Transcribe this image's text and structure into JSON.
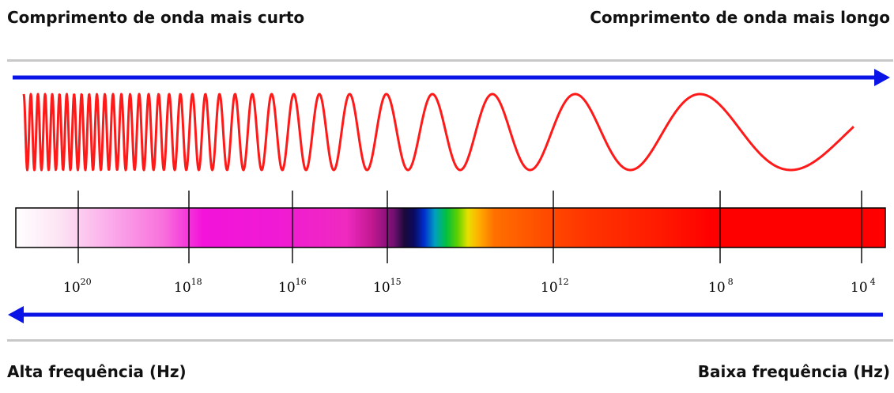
{
  "headings": {
    "short_wavelength": "Comprimento de onda mais curto",
    "long_wavelength": "Comprimento de onda mais longo",
    "high_frequency": "Alta frequência (Hz)",
    "low_frequency": "Baixa frequência (Hz)"
  },
  "frequency_ticks": [
    {
      "base": "10",
      "exponent": "20"
    },
    {
      "base": "10",
      "exponent": "18"
    },
    {
      "base": "10",
      "exponent": "16"
    },
    {
      "base": "10",
      "exponent": "15"
    },
    {
      "base": "10",
      "exponent": "12"
    },
    {
      "base": "10",
      "exponent": "8"
    },
    {
      "base": "10",
      "exponent": "4"
    }
  ],
  "colors": {
    "arrow": "#0a14e6",
    "wave": "#ff1a1a",
    "rule": "#c8c8c8"
  }
}
